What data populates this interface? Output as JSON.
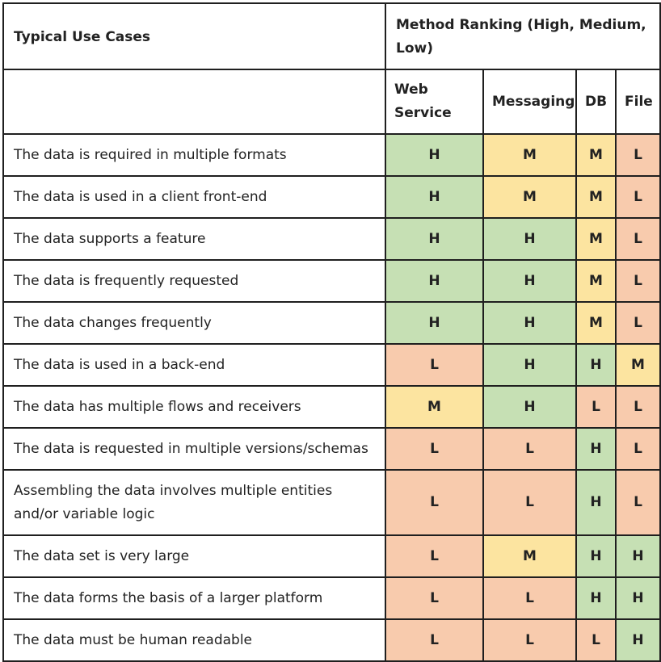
{
  "header": {
    "use_cases_label": "Typical Use Cases",
    "ranking_label": "Method Ranking (High, Medium, Low)",
    "methods": [
      "Web Service",
      "Messaging",
      "DB",
      "File"
    ]
  },
  "colors": {
    "H": "#c6e0b4",
    "M": "#fce4a0",
    "L": "#f8cbad"
  },
  "rows": [
    {
      "use_case": "The data is required in multiple formats",
      "ranks": [
        "H",
        "M",
        "M",
        "L"
      ]
    },
    {
      "use_case": "The data is used in a client front-end",
      "ranks": [
        "H",
        "M",
        "M",
        "L"
      ]
    },
    {
      "use_case": "The data supports a feature",
      "ranks": [
        "H",
        "H",
        "M",
        "L"
      ]
    },
    {
      "use_case": "The data is frequently requested",
      "ranks": [
        "H",
        "H",
        "M",
        "L"
      ]
    },
    {
      "use_case": "The data changes frequently",
      "ranks": [
        "H",
        "H",
        "M",
        "L"
      ]
    },
    {
      "use_case": "The data is used in a back-end",
      "ranks": [
        "L",
        "H",
        "H",
        "M"
      ]
    },
    {
      "use_case": "The data has multiple flows and receivers",
      "ranks": [
        "M",
        "H",
        "L",
        "L"
      ]
    },
    {
      "use_case": "The data is requested in multiple versions/schemas",
      "ranks": [
        "L",
        "L",
        "H",
        "L"
      ]
    },
    {
      "use_case": "Assembling the data involves multiple entities and/or variable logic",
      "ranks": [
        "L",
        "L",
        "H",
        "L"
      ]
    },
    {
      "use_case": "The data set is very large",
      "ranks": [
        "L",
        "M",
        "H",
        "H"
      ]
    },
    {
      "use_case": "The data forms the basis of a larger platform",
      "ranks": [
        "L",
        "L",
        "H",
        "H"
      ]
    },
    {
      "use_case": "The data must be human readable",
      "ranks": [
        "L",
        "L",
        "L",
        "H"
      ]
    }
  ]
}
